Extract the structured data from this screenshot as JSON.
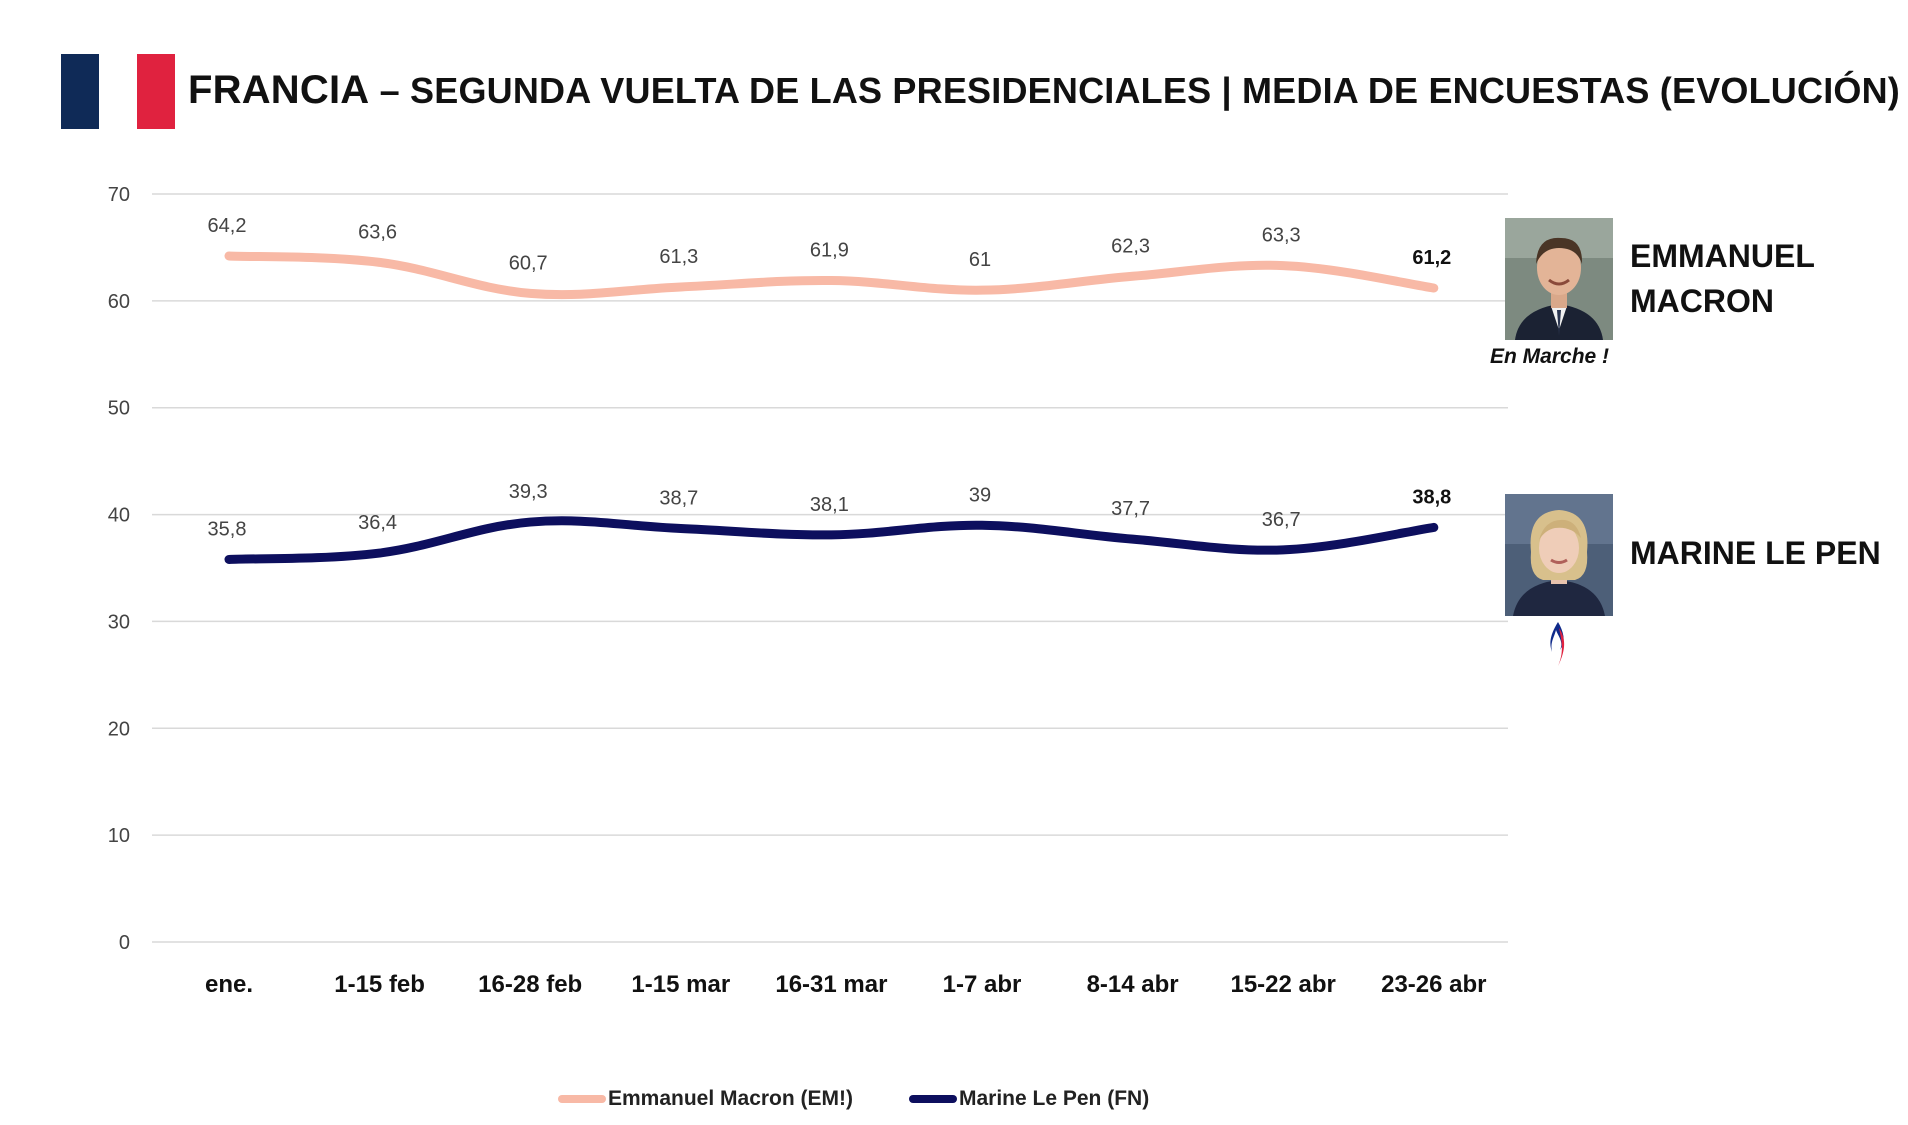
{
  "header": {
    "title_main": "FRANCIA",
    "title_rest": " – SEGUNDA VUELTA DE LAS PRESIDENCIALES | MEDIA DE ENCUESTAS (EVOLUCIÓN)",
    "flag_colors": [
      "#0f2a57",
      "#ffffff",
      "#e0223f"
    ]
  },
  "candidates": [
    {
      "name_line1": "EMMANUEL",
      "name_line2": "MACRON",
      "party": "En Marche !",
      "photo": "macron-photo"
    },
    {
      "name_line1": "MARINE LE PEN",
      "party_logo": "flame-icon",
      "photo": "le-pen-photo"
    }
  ],
  "legend": [
    {
      "label": "Emmanuel Macron (EM!)",
      "color": "#f8b9a6"
    },
    {
      "label": "Marine Le Pen (FN)",
      "color": "#0d0f5e"
    }
  ],
  "chart_data": {
    "type": "line",
    "title": "FRANCIA – SEGUNDA VUELTA DE LAS PRESIDENCIALES | MEDIA DE ENCUESTAS (EVOLUCIÓN)",
    "categories": [
      "ene.",
      "1-15 feb",
      "16-28 feb",
      "1-15 mar",
      "16-31 mar",
      "1-7 abr",
      "8-14 abr",
      "15-22 abr",
      "23-26 abr"
    ],
    "series": [
      {
        "name": "Emmanuel Macron (EM!)",
        "values": [
          64.2,
          63.6,
          60.7,
          61.3,
          61.9,
          61,
          62.3,
          63.3,
          61.2
        ],
        "labels": [
          "64,2",
          "63,6",
          "60,7",
          "61,3",
          "61,9",
          "61",
          "62,3",
          "63,3",
          "61,2"
        ],
        "color": "#f8b9a6"
      },
      {
        "name": "Marine Le Pen (FN)",
        "values": [
          35.8,
          36.4,
          39.3,
          38.7,
          38.1,
          39,
          37.7,
          36.7,
          38.8
        ],
        "labels": [
          "35,8",
          "36,4",
          "39,3",
          "38,7",
          "38,1",
          "39",
          "37,7",
          "36,7",
          "38,8"
        ],
        "color": "#0d0f5e"
      }
    ],
    "ylim": [
      0,
      70
    ],
    "yticks": [
      0,
      10,
      20,
      30,
      40,
      50,
      60,
      70
    ],
    "grid": true,
    "legend_position": "bottom"
  }
}
